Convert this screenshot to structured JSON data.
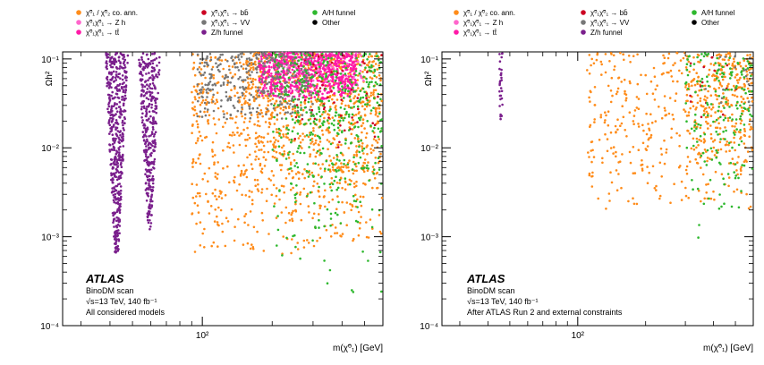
{
  "chart_data": [
    {
      "type": "scatter",
      "ylabel": "Ωh²",
      "xlabel": "m(χ̃⁰₁) [GeV]",
      "xscale": "log",
      "yscale": "log",
      "xlim": [
        25,
        600
      ],
      "ylim": [
        0.0001,
        0.12
      ],
      "x_tick_labels": [
        "10²"
      ],
      "x_ticks": [
        100
      ],
      "y_tick_labels": [
        "10⁻¹",
        "10⁻²",
        "10⁻³",
        "10⁻⁴"
      ],
      "y_ticks": [
        0.1,
        0.01,
        0.001,
        0.0001
      ],
      "annotation": {
        "brand": "ATLAS",
        "line1": "BinoDM scan",
        "line2": "√s=13 TeV, 140 fb⁻¹",
        "line3": "All considered models"
      },
      "series": [
        {
          "name": "χ̃⁰₁ / χ̃⁰₂ co. ann.",
          "color": "#ff8c1a",
          "regions": [
            {
              "x": [
                90,
                600
              ],
              "y": [
                0.0006,
                0.12
              ],
              "n": 900
            },
            {
              "x": [
                150,
                600
              ],
              "y": [
                0.003,
                0.12
              ],
              "n": 400
            }
          ]
        },
        {
          "name": "χ̃⁰₁χ̃⁰₁ → Z h",
          "color": "#ff66cc",
          "regions": [
            {
              "x": [
                200,
                500
              ],
              "y": [
                0.04,
                0.12
              ],
              "n": 120
            }
          ]
        },
        {
          "name": "χ̃⁰₁χ̃⁰₁ → tt̄",
          "color": "#ff1aa8",
          "regions": [
            {
              "x": [
                175,
                460
              ],
              "y": [
                0.035,
                0.12
              ],
              "n": 700
            }
          ]
        },
        {
          "name": "χ̃⁰₁χ̃⁰₁ → bb̄",
          "color": "#cc0022",
          "regions": [
            {
              "x": [
                250,
                600
              ],
              "y": [
                0.01,
                0.12
              ],
              "n": 60
            }
          ]
        },
        {
          "name": "χ̃⁰₁χ̃⁰₁ → VV",
          "color": "#777777",
          "regions": [
            {
              "x": [
                95,
                300
              ],
              "y": [
                0.02,
                0.12
              ],
              "n": 350
            }
          ]
        },
        {
          "name": "Z/h funnel",
          "color": "#7a1f8c",
          "regions": [
            {
              "x": [
                38,
                48
              ],
              "y": [
                0.0006,
                0.12
              ],
              "n": 500,
              "funnel": true
            },
            {
              "x": [
                53,
                66
              ],
              "y": [
                0.0012,
                0.12
              ],
              "n": 350,
              "funnel": true
            }
          ]
        },
        {
          "name": "A/H funnel",
          "color": "#2eb82e",
          "regions": [
            {
              "x": [
                200,
                600
              ],
              "y": [
                0.0001,
                0.12
              ],
              "n": 450
            }
          ]
        },
        {
          "name": "Other",
          "color": "#000000",
          "regions": []
        }
      ]
    },
    {
      "type": "scatter",
      "ylabel": "Ωh²",
      "xlabel": "m(χ̃⁰₁) [GeV]",
      "xscale": "log",
      "yscale": "log",
      "xlim": [
        25,
        600
      ],
      "ylim": [
        0.0001,
        0.12
      ],
      "x_tick_labels": [
        "10²"
      ],
      "x_ticks": [
        100
      ],
      "y_tick_labels": [
        "10⁻¹",
        "10⁻²",
        "10⁻³",
        "10⁻⁴"
      ],
      "y_ticks": [
        0.1,
        0.01,
        0.001,
        0.0001
      ],
      "annotation": {
        "brand": "ATLAS",
        "line1": "BinoDM scan",
        "line2": "√s=13 TeV, 140 fb⁻¹",
        "line3": "After ATLAS Run 2 and external constraints"
      },
      "series": [
        {
          "name": "χ̃⁰₁ / χ̃⁰₂ co. ann.",
          "color": "#ff8c1a",
          "regions": [
            {
              "x": [
                110,
                600
              ],
              "y": [
                0.002,
                0.12
              ],
              "n": 420
            },
            {
              "x": [
                300,
                600
              ],
              "y": [
                0.006,
                0.12
              ],
              "n": 200
            }
          ]
        },
        {
          "name": "χ̃⁰₁χ̃⁰₁ → Z h",
          "color": "#ff66cc",
          "regions": []
        },
        {
          "name": "χ̃⁰₁χ̃⁰₁ → tt̄",
          "color": "#ff1aa8",
          "regions": []
        },
        {
          "name": "χ̃⁰₁χ̃⁰₁ → bb̄",
          "color": "#cc0022",
          "regions": [
            {
              "x": [
                300,
                600
              ],
              "y": [
                0.01,
                0.12
              ],
              "n": 15
            }
          ]
        },
        {
          "name": "χ̃⁰₁χ̃⁰₁ → VV",
          "color": "#777777",
          "regions": [
            {
              "x": [
                350,
                600
              ],
              "y": [
                0.03,
                0.12
              ],
              "n": 20
            }
          ]
        },
        {
          "name": "Z/h funnel",
          "color": "#7a1f8c",
          "regions": [
            {
              "x": [
                45,
                46.5
              ],
              "y": [
                0.02,
                0.12
              ],
              "n": 30,
              "funnel": false
            }
          ]
        },
        {
          "name": "A/H funnel",
          "color": "#2eb82e",
          "regions": [
            {
              "x": [
                300,
                600
              ],
              "y": [
                0.0003,
                0.12
              ],
              "n": 180
            }
          ]
        },
        {
          "name": "Other",
          "color": "#000000",
          "regions": []
        }
      ]
    }
  ]
}
